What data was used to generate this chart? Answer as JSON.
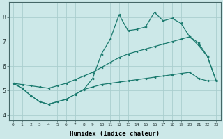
{
  "x": [
    0,
    1,
    2,
    3,
    4,
    5,
    6,
    7,
    8,
    9,
    10,
    11,
    12,
    13,
    14,
    15,
    16,
    17,
    18,
    19,
    20,
    21,
    22,
    23
  ],
  "line1": [
    5.3,
    5.1,
    4.8,
    4.55,
    4.45,
    4.55,
    4.65,
    4.85,
    5.05,
    5.5,
    6.5,
    7.1,
    8.1,
    7.45,
    7.5,
    7.6,
    8.2,
    7.85,
    7.95,
    7.75,
    7.2,
    6.85,
    6.4,
    5.4
  ],
  "line2": [
    5.3,
    5.1,
    4.8,
    4.55,
    4.45,
    4.55,
    4.65,
    4.85,
    5.05,
    5.15,
    5.25,
    5.3,
    5.35,
    5.4,
    5.45,
    5.5,
    5.55,
    5.6,
    5.65,
    5.7,
    5.75,
    5.5,
    5.4,
    5.4
  ],
  "line3": [
    5.3,
    5.25,
    5.2,
    5.15,
    5.1,
    5.2,
    5.3,
    5.45,
    5.6,
    5.75,
    5.95,
    6.15,
    6.35,
    6.5,
    6.6,
    6.7,
    6.8,
    6.9,
    7.0,
    7.1,
    7.2,
    6.95,
    6.4,
    5.4
  ],
  "color": "#1a7a6e",
  "bg_color": "#cce8e8",
  "grid_color": "#aacece",
  "xlabel": "Humidex (Indice chaleur)",
  "ylim": [
    3.8,
    8.6
  ],
  "xlim": [
    -0.5,
    23.5
  ],
  "yticks": [
    4,
    5,
    6,
    7,
    8
  ],
  "xticks": [
    0,
    1,
    2,
    3,
    4,
    5,
    6,
    7,
    8,
    9,
    10,
    11,
    12,
    13,
    14,
    15,
    16,
    17,
    18,
    19,
    20,
    21,
    22,
    23
  ]
}
